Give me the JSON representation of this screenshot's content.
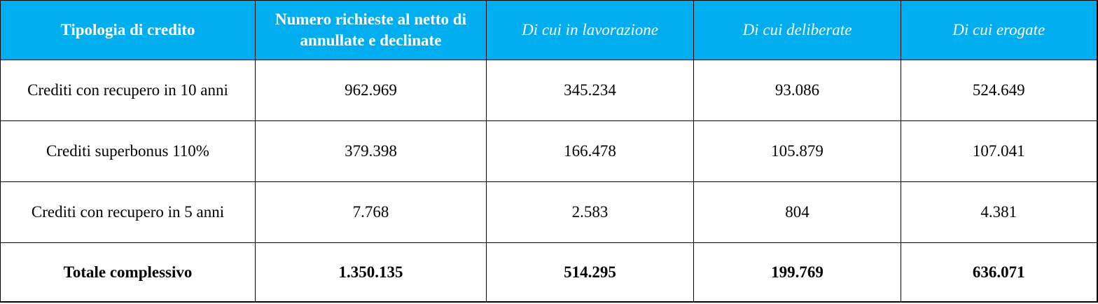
{
  "table": {
    "headers": [
      "Tipologia di credito",
      "Numero richieste al netto di annullate e declinate",
      "Di cui in lavorazione",
      "Di cui deliberate",
      "Di cui erogate"
    ],
    "rows": [
      [
        "Crediti con recupero in 10 anni",
        "962.969",
        "345.234",
        "93.086",
        "524.649"
      ],
      [
        "Crediti superbonus 110%",
        "379.398",
        "166.478",
        "105.879",
        "107.041"
      ],
      [
        "Crediti con recupero in 5 anni",
        "7.768",
        "2.583",
        "804",
        "4.381"
      ],
      [
        "Totale complessivo",
        "1.350.135",
        "514.295",
        "199.769",
        "636.071"
      ]
    ]
  }
}
